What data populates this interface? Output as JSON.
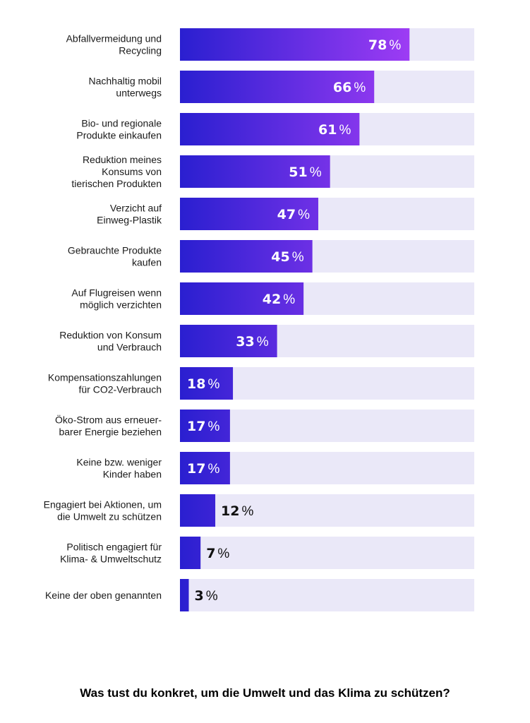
{
  "chart_data": {
    "type": "bar",
    "orientation": "horizontal",
    "title": "Was tust du konkret, um die Umwelt und das Klima zu schützen?",
    "unit": "%",
    "xlim": [
      0,
      100
    ],
    "grid": false,
    "legend": "none",
    "categories": [
      [
        "Abfallvermeidung und",
        "Recycling"
      ],
      [
        "Nachhaltig mobil",
        "unterwegs"
      ],
      [
        "Bio- und regionale",
        "Produkte einkaufen"
      ],
      [
        "Reduktion meines",
        "Konsums von",
        "tierischen Produkten"
      ],
      [
        "Verzicht auf",
        "Einweg-Plastik"
      ],
      [
        "Gebrauchte Produkte",
        "kaufen"
      ],
      [
        "Auf Flugreisen wenn",
        "möglich verzichten"
      ],
      [
        "Reduktion von Konsum",
        "und Verbrauch"
      ],
      [
        "Kompensationszahlungen",
        "für CO2-Verbrauch"
      ],
      [
        "Öko-Strom aus erneuer-",
        "barer Energie beziehen"
      ],
      [
        "Keine bzw. weniger",
        "Kinder haben"
      ],
      [
        "Engagiert bei Aktionen, um",
        "die Umwelt zu schützen"
      ],
      [
        "Politisch engagiert für",
        "Klima- & Umweltschutz"
      ],
      [
        "Keine der oben genannten"
      ]
    ],
    "values": [
      78,
      66,
      61,
      51,
      47,
      45,
      42,
      33,
      18,
      17,
      17,
      12,
      7,
      3
    ],
    "colors": {
      "bar_start": "#2a1fd0",
      "bar_end": "#9d3cf4",
      "track": "#eae8f8",
      "label_inside": "#ffffff",
      "label_outside": "#111111"
    }
  }
}
